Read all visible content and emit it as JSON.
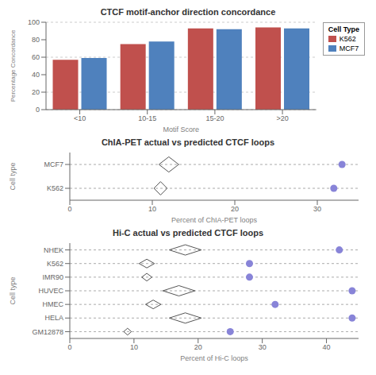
{
  "chart_data": [
    {
      "type": "bar",
      "title": "CTCF motif-anchor direction concordance",
      "categories": [
        "<10",
        "10-15",
        "15-20",
        ">20"
      ],
      "series": [
        {
          "name": "K562",
          "color": "#c0504d",
          "values": [
            57,
            75,
            93,
            94
          ]
        },
        {
          "name": "MCF7",
          "color": "#4f81bd",
          "values": [
            59,
            78,
            92,
            93
          ]
        }
      ],
      "xlabel": "Motif Score",
      "ylabel": "Percentage Concordance",
      "ylim": [
        0,
        100
      ],
      "yticks": [
        0,
        20,
        40,
        60,
        80,
        100
      ],
      "grid": true,
      "legend": "right",
      "legend_title": "Cell Type"
    },
    {
      "type": "scatter",
      "title": "ChIA-PET actual vs predicted CTCF loops",
      "categories": [
        "MCF7",
        "K562"
      ],
      "predicted": [
        12,
        11
      ],
      "predicted_widths": [
        1.2,
        0.8
      ],
      "predicted_heights": [
        0.32,
        0.28
      ],
      "actual": [
        33,
        32
      ],
      "xlabel": "Percent of ChIA-PET loops",
      "ylabel": "Cell type",
      "xlim": [
        0,
        35
      ],
      "xticks": [
        0,
        10,
        20,
        30
      ]
    },
    {
      "type": "scatter",
      "title": "Hi-C actual vs predicted CTCF loops",
      "categories": [
        "NHEK",
        "K562",
        "IMR90",
        "HUVEC",
        "HMEC",
        "HELA",
        "GM12878"
      ],
      "predicted": [
        18,
        12,
        12,
        17,
        13,
        18,
        9
      ],
      "predicted_widths": [
        2.5,
        1.2,
        0.8,
        2.5,
        1.2,
        2.5,
        0.6
      ],
      "predicted_heights": [
        0.38,
        0.32,
        0.28,
        0.38,
        0.32,
        0.38,
        0.25
      ],
      "actual": [
        42,
        28,
        28,
        44,
        32,
        44,
        25
      ],
      "xlabel": "Percent of Hi-C loops",
      "ylabel": "Cell type",
      "xlim": [
        0,
        45
      ],
      "xticks": [
        0,
        10,
        20,
        30,
        40
      ]
    }
  ]
}
